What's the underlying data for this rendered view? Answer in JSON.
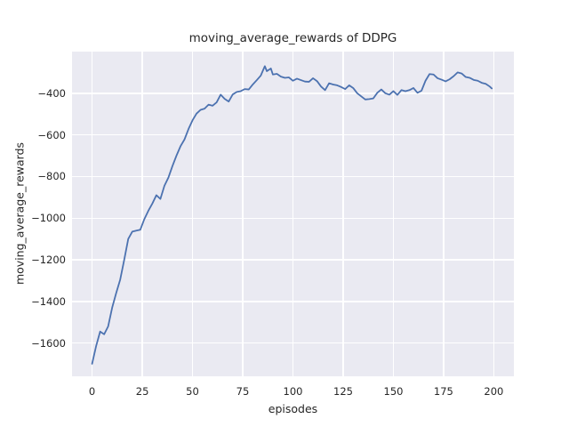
{
  "chart_data": {
    "type": "line",
    "title": "moving_average_rewards of DDPG",
    "xlabel": "episodes",
    "ylabel": "moving_average_rewards",
    "xlim": [
      -10,
      210
    ],
    "ylim": [
      -1760,
      -200
    ],
    "grid": true,
    "legend": false,
    "style": "seaborn-darkgrid",
    "colors": {
      "figure_background": "#ffffff",
      "axes_background": "#eaeaf2",
      "grid": "#ffffff",
      "text": "#262626"
    },
    "xticks": [
      {
        "v": 0,
        "label": "0"
      },
      {
        "v": 25,
        "label": "25"
      },
      {
        "v": 50,
        "label": "50"
      },
      {
        "v": 75,
        "label": "75"
      },
      {
        "v": 100,
        "label": "100"
      },
      {
        "v": 125,
        "label": "125"
      },
      {
        "v": 150,
        "label": "150"
      },
      {
        "v": 175,
        "label": "175"
      },
      {
        "v": 200,
        "label": "200"
      }
    ],
    "yticks": [
      {
        "v": -400,
        "label": "−400"
      },
      {
        "v": -600,
        "label": "−600"
      },
      {
        "v": -800,
        "label": "−800"
      },
      {
        "v": -1000,
        "label": "−1000"
      },
      {
        "v": -1200,
        "label": "−1200"
      },
      {
        "v": -1400,
        "label": "−1400"
      },
      {
        "v": -1600,
        "label": "−1600"
      }
    ],
    "series": [
      {
        "name": "moving_average_rewards",
        "color": "#4c72b0",
        "line_width": 1.8,
        "x": [
          0,
          2,
          4,
          6,
          8,
          10,
          12,
          14,
          16,
          18,
          20,
          22,
          24,
          26,
          28,
          30,
          32,
          34,
          36,
          38,
          40,
          42,
          44,
          46,
          48,
          50,
          52,
          54,
          56,
          58,
          60,
          62,
          64,
          66,
          68,
          70,
          72,
          74,
          76,
          78,
          80,
          82,
          84,
          86,
          87,
          89,
          90,
          92,
          94,
          96,
          98,
          100,
          102,
          104,
          106,
          108,
          110,
          112,
          114,
          116,
          118,
          120,
          122,
          124,
          126,
          128,
          130,
          132,
          134,
          136,
          138,
          140,
          142,
          144,
          146,
          148,
          150,
          152,
          154,
          156,
          158,
          160,
          162,
          164,
          166,
          168,
          170,
          172,
          174,
          176,
          178,
          180,
          182,
          184,
          186,
          188,
          190,
          192,
          194,
          196,
          198,
          199
        ],
        "values": [
          -1700,
          -1615,
          -1545,
          -1558,
          -1520,
          -1430,
          -1360,
          -1295,
          -1200,
          -1100,
          -1065,
          -1060,
          -1056,
          -1005,
          -965,
          -930,
          -890,
          -908,
          -845,
          -805,
          -750,
          -700,
          -655,
          -622,
          -572,
          -530,
          -498,
          -480,
          -474,
          -455,
          -460,
          -444,
          -407,
          -427,
          -440,
          -406,
          -394,
          -390,
          -380,
          -382,
          -358,
          -337,
          -315,
          -270,
          -294,
          -281,
          -310,
          -307,
          -320,
          -326,
          -324,
          -340,
          -330,
          -337,
          -344,
          -345,
          -328,
          -342,
          -368,
          -385,
          -352,
          -358,
          -362,
          -370,
          -380,
          -362,
          -375,
          -400,
          -415,
          -430,
          -428,
          -425,
          -398,
          -382,
          -400,
          -407,
          -390,
          -408,
          -385,
          -390,
          -385,
          -375,
          -398,
          -388,
          -340,
          -308,
          -310,
          -328,
          -335,
          -343,
          -333,
          -318,
          -300,
          -305,
          -322,
          -326,
          -336,
          -340,
          -350,
          -355,
          -368,
          -377
        ]
      }
    ]
  }
}
